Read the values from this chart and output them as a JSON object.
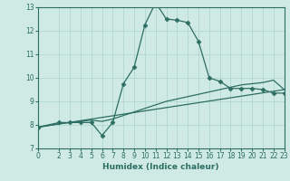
{
  "xlabel": "Humidex (Indice chaleur)",
  "xlim": [
    0,
    23
  ],
  "ylim": [
    7,
    13
  ],
  "xticks": [
    0,
    2,
    3,
    4,
    5,
    6,
    7,
    8,
    9,
    10,
    11,
    12,
    13,
    14,
    15,
    16,
    17,
    18,
    19,
    20,
    21,
    22,
    23
  ],
  "yticks": [
    7,
    8,
    9,
    10,
    11,
    12,
    13
  ],
  "bg_color": "#cfe9e5",
  "line_color": "#2d6e62",
  "line1_x": [
    0,
    2,
    3,
    4,
    5,
    6,
    7,
    8,
    9,
    10,
    11,
    12,
    13,
    14,
    15,
    16,
    17,
    18,
    19,
    20,
    21,
    22,
    23
  ],
  "line1_y": [
    7.9,
    8.1,
    8.1,
    8.1,
    8.1,
    7.55,
    8.1,
    9.75,
    10.45,
    12.25,
    13.2,
    12.5,
    12.45,
    12.35,
    11.55,
    10.0,
    9.85,
    9.55,
    9.55,
    9.55,
    9.5,
    9.35,
    9.35
  ],
  "line2_x": [
    0,
    23
  ],
  "line2_y": [
    7.9,
    9.5
  ],
  "line3_x": [
    0,
    2,
    3,
    4,
    5,
    6,
    7,
    8,
    9,
    10,
    11,
    12,
    13,
    14,
    15,
    16,
    17,
    18,
    19,
    20,
    21,
    22,
    23
  ],
  "line3_y": [
    7.9,
    8.05,
    8.1,
    8.15,
    8.2,
    8.15,
    8.25,
    8.4,
    8.55,
    8.7,
    8.85,
    9.0,
    9.1,
    9.2,
    9.3,
    9.4,
    9.5,
    9.6,
    9.7,
    9.75,
    9.8,
    9.9,
    9.5
  ],
  "grid_color": "#aad4cc",
  "marker": "D",
  "marker_size": 2.5,
  "lw": 0.9
}
